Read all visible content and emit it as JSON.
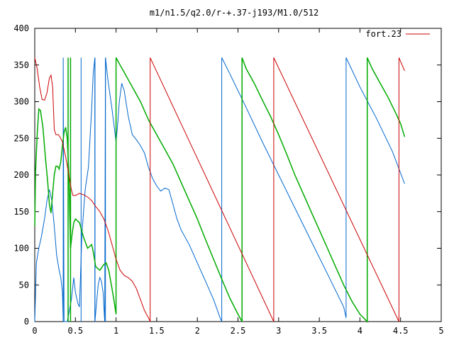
{
  "chart_data": {
    "type": "line",
    "title": "m1/n1.5/q2.0/r-+.37-j193/M1.0/512",
    "xlabel": "",
    "ylabel": "",
    "xlim": [
      0,
      5
    ],
    "ylim": [
      0,
      400
    ],
    "grid": false,
    "legend_position": "top-right",
    "x_ticks": [
      {
        "value": 0,
        "label": "0"
      },
      {
        "value": 0.5,
        "label": "0.5"
      },
      {
        "value": 1,
        "label": "1"
      },
      {
        "value": 1.5,
        "label": "1.5"
      },
      {
        "value": 2,
        "label": "2"
      },
      {
        "value": 2.5,
        "label": "2.5"
      },
      {
        "value": 3,
        "label": "3"
      },
      {
        "value": 3.5,
        "label": "3.5"
      },
      {
        "value": 4,
        "label": "4"
      },
      {
        "value": 4.5,
        "label": "4.5"
      },
      {
        "value": 5,
        "label": "5"
      }
    ],
    "y_ticks": [
      {
        "value": 0,
        "label": "0"
      },
      {
        "value": 50,
        "label": "50"
      },
      {
        "value": 100,
        "label": "100"
      },
      {
        "value": 150,
        "label": "150"
      },
      {
        "value": 200,
        "label": "200"
      },
      {
        "value": 250,
        "label": "250"
      },
      {
        "value": 300,
        "label": "300"
      },
      {
        "value": 350,
        "label": "350"
      },
      {
        "value": 400,
        "label": "400"
      }
    ],
    "series": [
      {
        "name": "fort.23",
        "color": "#cc0000",
        "width": 1,
        "points": [
          [
            0.0,
            360
          ],
          [
            0.03,
            345
          ],
          [
            0.06,
            320
          ],
          [
            0.09,
            303
          ],
          [
            0.12,
            302
          ],
          [
            0.15,
            312
          ],
          [
            0.18,
            332
          ],
          [
            0.2,
            336
          ],
          [
            0.22,
            320
          ],
          [
            0.24,
            262
          ],
          [
            0.26,
            255
          ],
          [
            0.29,
            255
          ],
          [
            0.31,
            252
          ],
          [
            0.34,
            245
          ],
          [
            0.38,
            225
          ],
          [
            0.42,
            200
          ],
          [
            0.45,
            180
          ],
          [
            0.47,
            172
          ],
          [
            0.5,
            172
          ],
          [
            0.55,
            175
          ],
          [
            0.6,
            173
          ],
          [
            0.65,
            170
          ],
          [
            0.7,
            165
          ],
          [
            0.75,
            157
          ],
          [
            0.8,
            150
          ],
          [
            0.85,
            140
          ],
          [
            0.9,
            125
          ],
          [
            0.95,
            105
          ],
          [
            1.0,
            85
          ],
          [
            1.05,
            70
          ],
          [
            1.1,
            63
          ],
          [
            1.15,
            60
          ],
          [
            1.2,
            55
          ],
          [
            1.25,
            45
          ],
          [
            1.3,
            30
          ],
          [
            1.35,
            15
          ],
          [
            1.4,
            5
          ],
          [
            1.42,
            0
          ],
          [
            1.42,
            360
          ],
          [
            2.94,
            0
          ],
          [
            2.94,
            360
          ],
          [
            4.48,
            0
          ],
          [
            4.48,
            360
          ],
          [
            4.55,
            342
          ]
        ]
      },
      {
        "name": "",
        "color": "#00aa00",
        "width": 1.5,
        "points": [
          [
            0.0,
            130
          ],
          [
            0.01,
            205
          ],
          [
            0.03,
            255
          ],
          [
            0.05,
            290
          ],
          [
            0.07,
            288
          ],
          [
            0.1,
            265
          ],
          [
            0.13,
            225
          ],
          [
            0.16,
            190
          ],
          [
            0.18,
            160
          ],
          [
            0.2,
            148
          ],
          [
            0.22,
            175
          ],
          [
            0.24,
            200
          ],
          [
            0.26,
            212
          ],
          [
            0.28,
            212
          ],
          [
            0.3,
            208
          ],
          [
            0.32,
            218
          ],
          [
            0.34,
            240
          ],
          [
            0.36,
            258
          ],
          [
            0.38,
            265
          ],
          [
            0.4,
            250
          ],
          [
            0.42,
            200
          ],
          [
            0.44,
            100
          ],
          [
            0.46,
            120
          ],
          [
            0.48,
            135
          ],
          [
            0.5,
            140
          ],
          [
            0.55,
            135
          ],
          [
            0.6,
            115
          ],
          [
            0.65,
            100
          ],
          [
            0.7,
            105
          ],
          [
            0.72,
            95
          ],
          [
            0.75,
            75
          ],
          [
            0.8,
            70
          ],
          [
            0.85,
            78
          ],
          [
            0.88,
            80
          ],
          [
            0.91,
            70
          ],
          [
            0.95,
            45
          ],
          [
            0.98,
            25
          ],
          [
            1.0,
            10
          ],
          [
            1.0,
            360
          ],
          [
            1.05,
            350
          ],
          [
            1.1,
            340
          ],
          [
            1.2,
            320
          ],
          [
            1.3,
            300
          ],
          [
            1.4,
            275
          ],
          [
            1.5,
            255
          ],
          [
            1.6,
            235
          ],
          [
            1.7,
            215
          ],
          [
            1.8,
            190
          ],
          [
            1.9,
            165
          ],
          [
            2.0,
            140
          ],
          [
            2.1,
            112
          ],
          [
            2.2,
            85
          ],
          [
            2.3,
            58
          ],
          [
            2.4,
            32
          ],
          [
            2.5,
            10
          ],
          [
            2.55,
            0
          ],
          [
            2.55,
            360
          ],
          [
            2.6,
            345
          ],
          [
            2.7,
            325
          ],
          [
            2.8,
            302
          ],
          [
            2.9,
            280
          ],
          [
            3.0,
            255
          ],
          [
            3.1,
            228
          ],
          [
            3.2,
            200
          ],
          [
            3.3,
            175
          ],
          [
            3.4,
            150
          ],
          [
            3.5,
            125
          ],
          [
            3.6,
            100
          ],
          [
            3.7,
            75
          ],
          [
            3.8,
            50
          ],
          [
            3.9,
            28
          ],
          [
            4.0,
            10
          ],
          [
            4.09,
            0
          ],
          [
            4.09,
            360
          ],
          [
            4.15,
            345
          ],
          [
            4.25,
            325
          ],
          [
            4.35,
            305
          ],
          [
            4.45,
            282
          ],
          [
            4.5,
            270
          ],
          [
            4.55,
            252
          ]
        ],
        "drops": [
          0.41,
          0.44
        ]
      },
      {
        "name": "",
        "color": "#0066cc",
        "width": 1,
        "points": [
          [
            0.0,
            0
          ],
          [
            0.02,
            80
          ],
          [
            0.05,
            100
          ],
          [
            0.08,
            115
          ],
          [
            0.12,
            140
          ],
          [
            0.15,
            165
          ],
          [
            0.18,
            180
          ],
          [
            0.21,
            165
          ],
          [
            0.24,
            130
          ],
          [
            0.27,
            90
          ],
          [
            0.3,
            70
          ],
          [
            0.32,
            60
          ],
          [
            0.34,
            40
          ],
          [
            0.35,
            0
          ],
          [
            0.35,
            360
          ],
          [
            0.36,
            0
          ],
          [
            0.4,
            0
          ],
          [
            0.45,
            30
          ],
          [
            0.48,
            60
          ],
          [
            0.5,
            40
          ],
          [
            0.53,
            25
          ],
          [
            0.55,
            20
          ],
          [
            0.58,
            120
          ],
          [
            0.62,
            180
          ],
          [
            0.66,
            210
          ],
          [
            0.7,
            290
          ],
          [
            0.72,
            340
          ],
          [
            0.74,
            360
          ],
          [
            0.74,
            0
          ],
          [
            0.78,
            50
          ],
          [
            0.8,
            60
          ],
          [
            0.82,
            55
          ],
          [
            0.84,
            40
          ],
          [
            0.86,
            0
          ],
          [
            0.87,
            360
          ],
          [
            0.9,
            330
          ],
          [
            0.95,
            290
          ],
          [
            1.0,
            245
          ],
          [
            1.02,
            270
          ],
          [
            1.04,
            300
          ],
          [
            1.07,
            325
          ],
          [
            1.1,
            315
          ],
          [
            1.15,
            280
          ],
          [
            1.2,
            255
          ],
          [
            1.25,
            248
          ],
          [
            1.3,
            240
          ],
          [
            1.35,
            230
          ],
          [
            1.4,
            210
          ],
          [
            1.45,
            195
          ],
          [
            1.5,
            185
          ],
          [
            1.55,
            178
          ],
          [
            1.6,
            182
          ],
          [
            1.65,
            180
          ],
          [
            1.7,
            160
          ],
          [
            1.75,
            140
          ],
          [
            1.8,
            125
          ],
          [
            1.9,
            105
          ],
          [
            2.0,
            80
          ],
          [
            2.1,
            55
          ],
          [
            2.2,
            30
          ],
          [
            2.28,
            5
          ],
          [
            2.3,
            0
          ],
          [
            2.3,
            360
          ],
          [
            2.4,
            338
          ],
          [
            2.6,
            292
          ],
          [
            2.8,
            245
          ],
          [
            3.0,
            200
          ],
          [
            3.2,
            155
          ],
          [
            3.4,
            110
          ],
          [
            3.6,
            65
          ],
          [
            3.8,
            20
          ],
          [
            3.83,
            5
          ],
          [
            3.83,
            360
          ],
          [
            4.0,
            320
          ],
          [
            4.2,
            278
          ],
          [
            4.4,
            232
          ],
          [
            4.55,
            188
          ]
        ],
        "drops": [
          0.57,
          0.74,
          0.87
        ]
      }
    ]
  }
}
